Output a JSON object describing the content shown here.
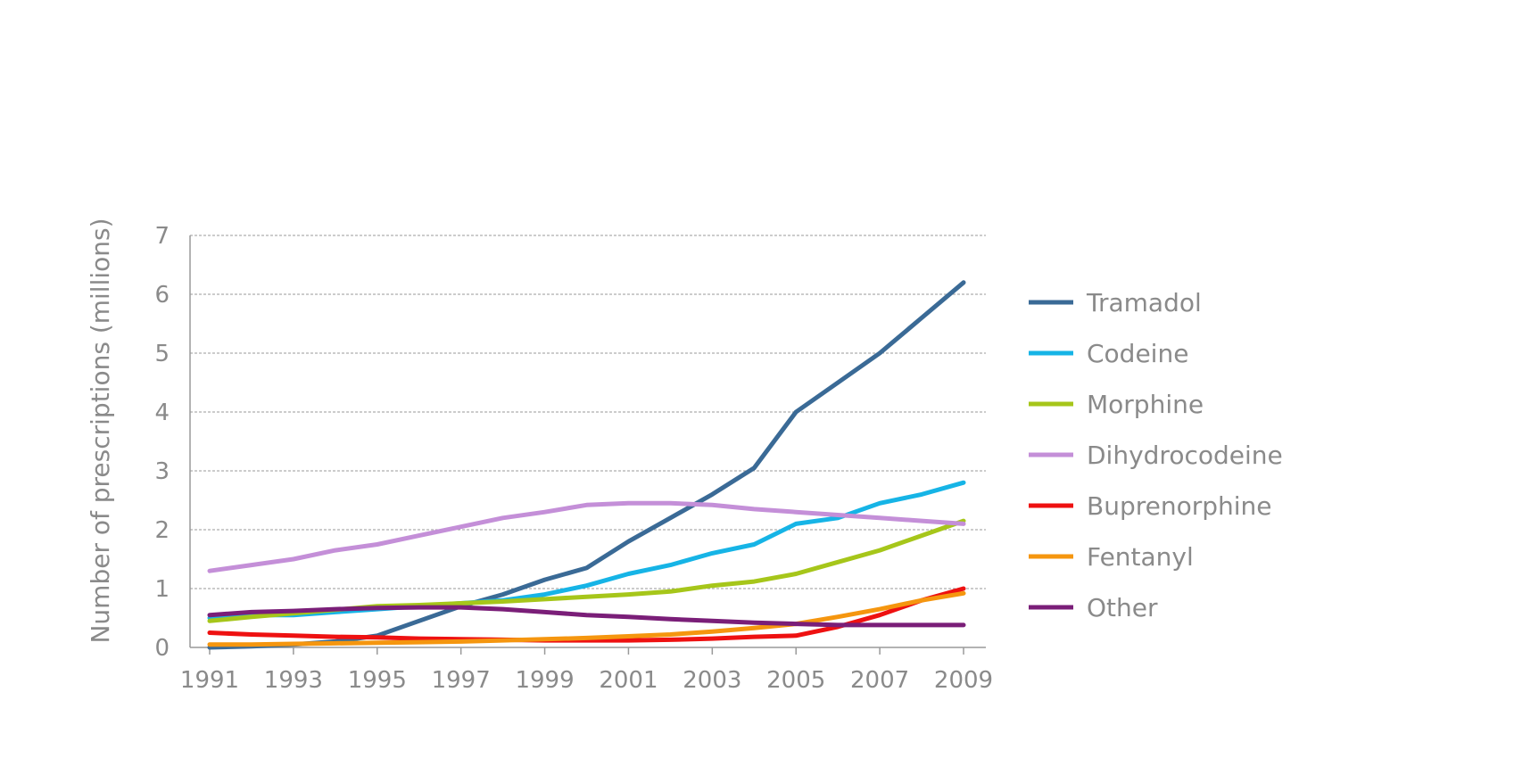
{
  "chart_data": {
    "type": "line",
    "title": "",
    "xlabel": "",
    "ylabel": "Number of prescriptions (millions)",
    "xlim": [
      1991,
      2009
    ],
    "ylim": [
      0,
      7
    ],
    "x_ticks": [
      "1991",
      "1993",
      "1995",
      "1997",
      "1999",
      "2001",
      "2003",
      "2005",
      "2007",
      "2009"
    ],
    "y_ticks": [
      "0",
      "1",
      "2",
      "3",
      "4",
      "5",
      "6",
      "7"
    ],
    "grid": "horizontal, dashed",
    "legend_position": "right",
    "x": [
      1991,
      1992,
      1993,
      1994,
      1995,
      1996,
      1997,
      1998,
      1999,
      2000,
      2001,
      2002,
      2003,
      2004,
      2005,
      2006,
      2007,
      2008,
      2009
    ],
    "series": [
      {
        "name": "Tramadol",
        "color": "#3a6a96",
        "values": [
          0.0,
          0.02,
          0.05,
          0.1,
          0.2,
          0.45,
          0.7,
          0.9,
          1.15,
          1.35,
          1.8,
          2.2,
          2.6,
          3.05,
          4.0,
          4.5,
          5.0,
          5.6,
          6.2
        ]
      },
      {
        "name": "Codeine",
        "color": "#16b4e6",
        "values": [
          0.5,
          0.55,
          0.55,
          0.6,
          0.65,
          0.7,
          0.75,
          0.8,
          0.9,
          1.05,
          1.25,
          1.4,
          1.6,
          1.75,
          2.1,
          2.2,
          2.45,
          2.6,
          2.8
        ]
      },
      {
        "name": "Morphine",
        "color": "#a6c61a",
        "values": [
          0.45,
          0.52,
          0.58,
          0.64,
          0.7,
          0.72,
          0.75,
          0.78,
          0.82,
          0.86,
          0.9,
          0.95,
          1.05,
          1.12,
          1.25,
          1.45,
          1.65,
          1.9,
          2.15
        ]
      },
      {
        "name": "Dihydrocodeine",
        "color": "#c48fd8",
        "values": [
          1.3,
          1.4,
          1.5,
          1.65,
          1.75,
          1.9,
          2.05,
          2.2,
          2.3,
          2.42,
          2.45,
          2.45,
          2.42,
          2.35,
          2.3,
          2.25,
          2.2,
          2.15,
          2.1
        ]
      },
      {
        "name": "Buprenorphine",
        "color": "#ee1111",
        "values": [
          0.25,
          0.22,
          0.2,
          0.18,
          0.17,
          0.15,
          0.14,
          0.13,
          0.12,
          0.12,
          0.12,
          0.13,
          0.15,
          0.18,
          0.2,
          0.35,
          0.55,
          0.8,
          1.0
        ]
      },
      {
        "name": "Fentanyl",
        "color": "#f5960f",
        "values": [
          0.05,
          0.05,
          0.06,
          0.07,
          0.08,
          0.09,
          0.1,
          0.12,
          0.14,
          0.16,
          0.19,
          0.22,
          0.27,
          0.33,
          0.4,
          0.52,
          0.65,
          0.8,
          0.92
        ]
      },
      {
        "name": "Other",
        "color": "#7a1e78",
        "values": [
          0.55,
          0.6,
          0.62,
          0.65,
          0.67,
          0.68,
          0.68,
          0.65,
          0.6,
          0.55,
          0.52,
          0.48,
          0.45,
          0.42,
          0.4,
          0.38,
          0.38,
          0.38,
          0.38
        ]
      }
    ]
  }
}
